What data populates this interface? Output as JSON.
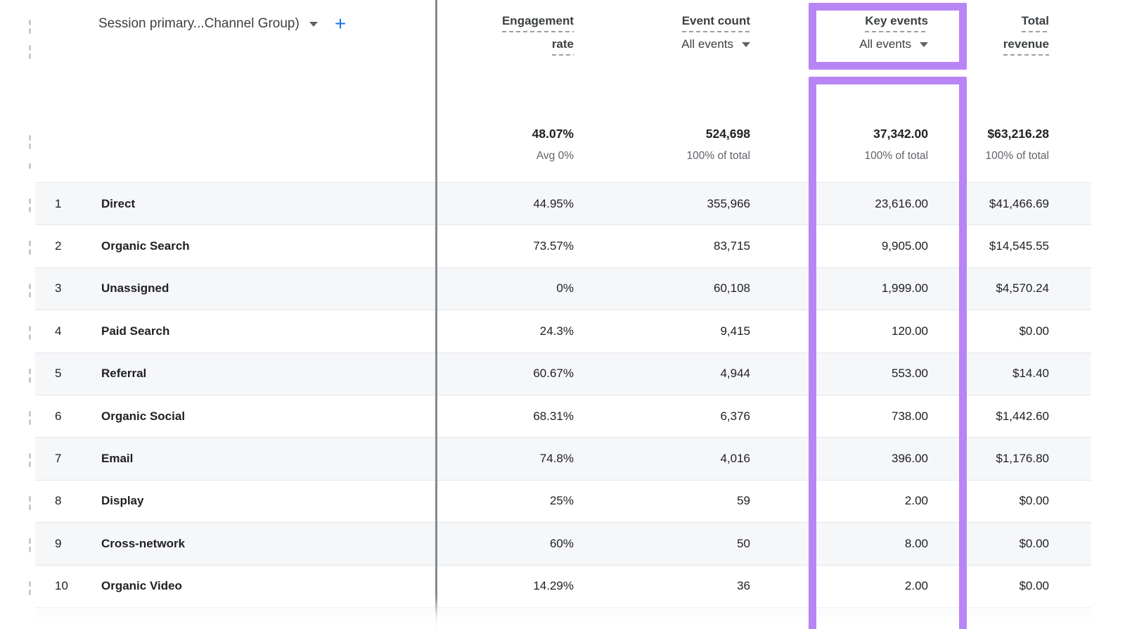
{
  "accent": {
    "highlight_purple": "#B885F4",
    "link_blue": "#1A73E8"
  },
  "dimension_header": {
    "label": "Session primary...Channel Group)",
    "add_button": "+"
  },
  "columns": [
    {
      "title_lines": [
        "Engagement",
        "rate"
      ],
      "filter": null
    },
    {
      "title_lines": [
        "Event count"
      ],
      "filter": "All events"
    },
    {
      "title_lines": [
        "Key events"
      ],
      "filter": "All events",
      "highlighted": true
    },
    {
      "title_lines": [
        "Total",
        "revenue"
      ],
      "filter": null
    }
  ],
  "totals": {
    "engagement_rate": "48.07%",
    "engagement_rate_sub": "Avg 0%",
    "event_count": "524,698",
    "event_count_sub": "100% of total",
    "key_events": "37,342.00",
    "key_events_sub": "100% of total",
    "total_revenue": "$63,216.28",
    "total_revenue_sub": "100% of total"
  },
  "rows": [
    {
      "rank": "1",
      "channel": "Direct",
      "engagement_rate": "44.95%",
      "event_count": "355,966",
      "key_events": "23,616.00",
      "total_revenue": "$41,466.69"
    },
    {
      "rank": "2",
      "channel": "Organic Search",
      "engagement_rate": "73.57%",
      "event_count": "83,715",
      "key_events": "9,905.00",
      "total_revenue": "$14,545.55"
    },
    {
      "rank": "3",
      "channel": "Unassigned",
      "engagement_rate": "0%",
      "event_count": "60,108",
      "key_events": "1,999.00",
      "total_revenue": "$4,570.24"
    },
    {
      "rank": "4",
      "channel": "Paid Search",
      "engagement_rate": "24.3%",
      "event_count": "9,415",
      "key_events": "120.00",
      "total_revenue": "$0.00"
    },
    {
      "rank": "5",
      "channel": "Referral",
      "engagement_rate": "60.67%",
      "event_count": "4,944",
      "key_events": "553.00",
      "total_revenue": "$14.40"
    },
    {
      "rank": "6",
      "channel": "Organic Social",
      "engagement_rate": "68.31%",
      "event_count": "6,376",
      "key_events": "738.00",
      "total_revenue": "$1,442.60"
    },
    {
      "rank": "7",
      "channel": "Email",
      "engagement_rate": "74.8%",
      "event_count": "4,016",
      "key_events": "396.00",
      "total_revenue": "$1,176.80"
    },
    {
      "rank": "8",
      "channel": "Display",
      "engagement_rate": "25%",
      "event_count": "59",
      "key_events": "2.00",
      "total_revenue": "$0.00"
    },
    {
      "rank": "9",
      "channel": "Cross-network",
      "engagement_rate": "60%",
      "event_count": "50",
      "key_events": "8.00",
      "total_revenue": "$0.00"
    },
    {
      "rank": "10",
      "channel": "Organic Video",
      "engagement_rate": "14.29%",
      "event_count": "36",
      "key_events": "2.00",
      "total_revenue": "$0.00"
    }
  ]
}
